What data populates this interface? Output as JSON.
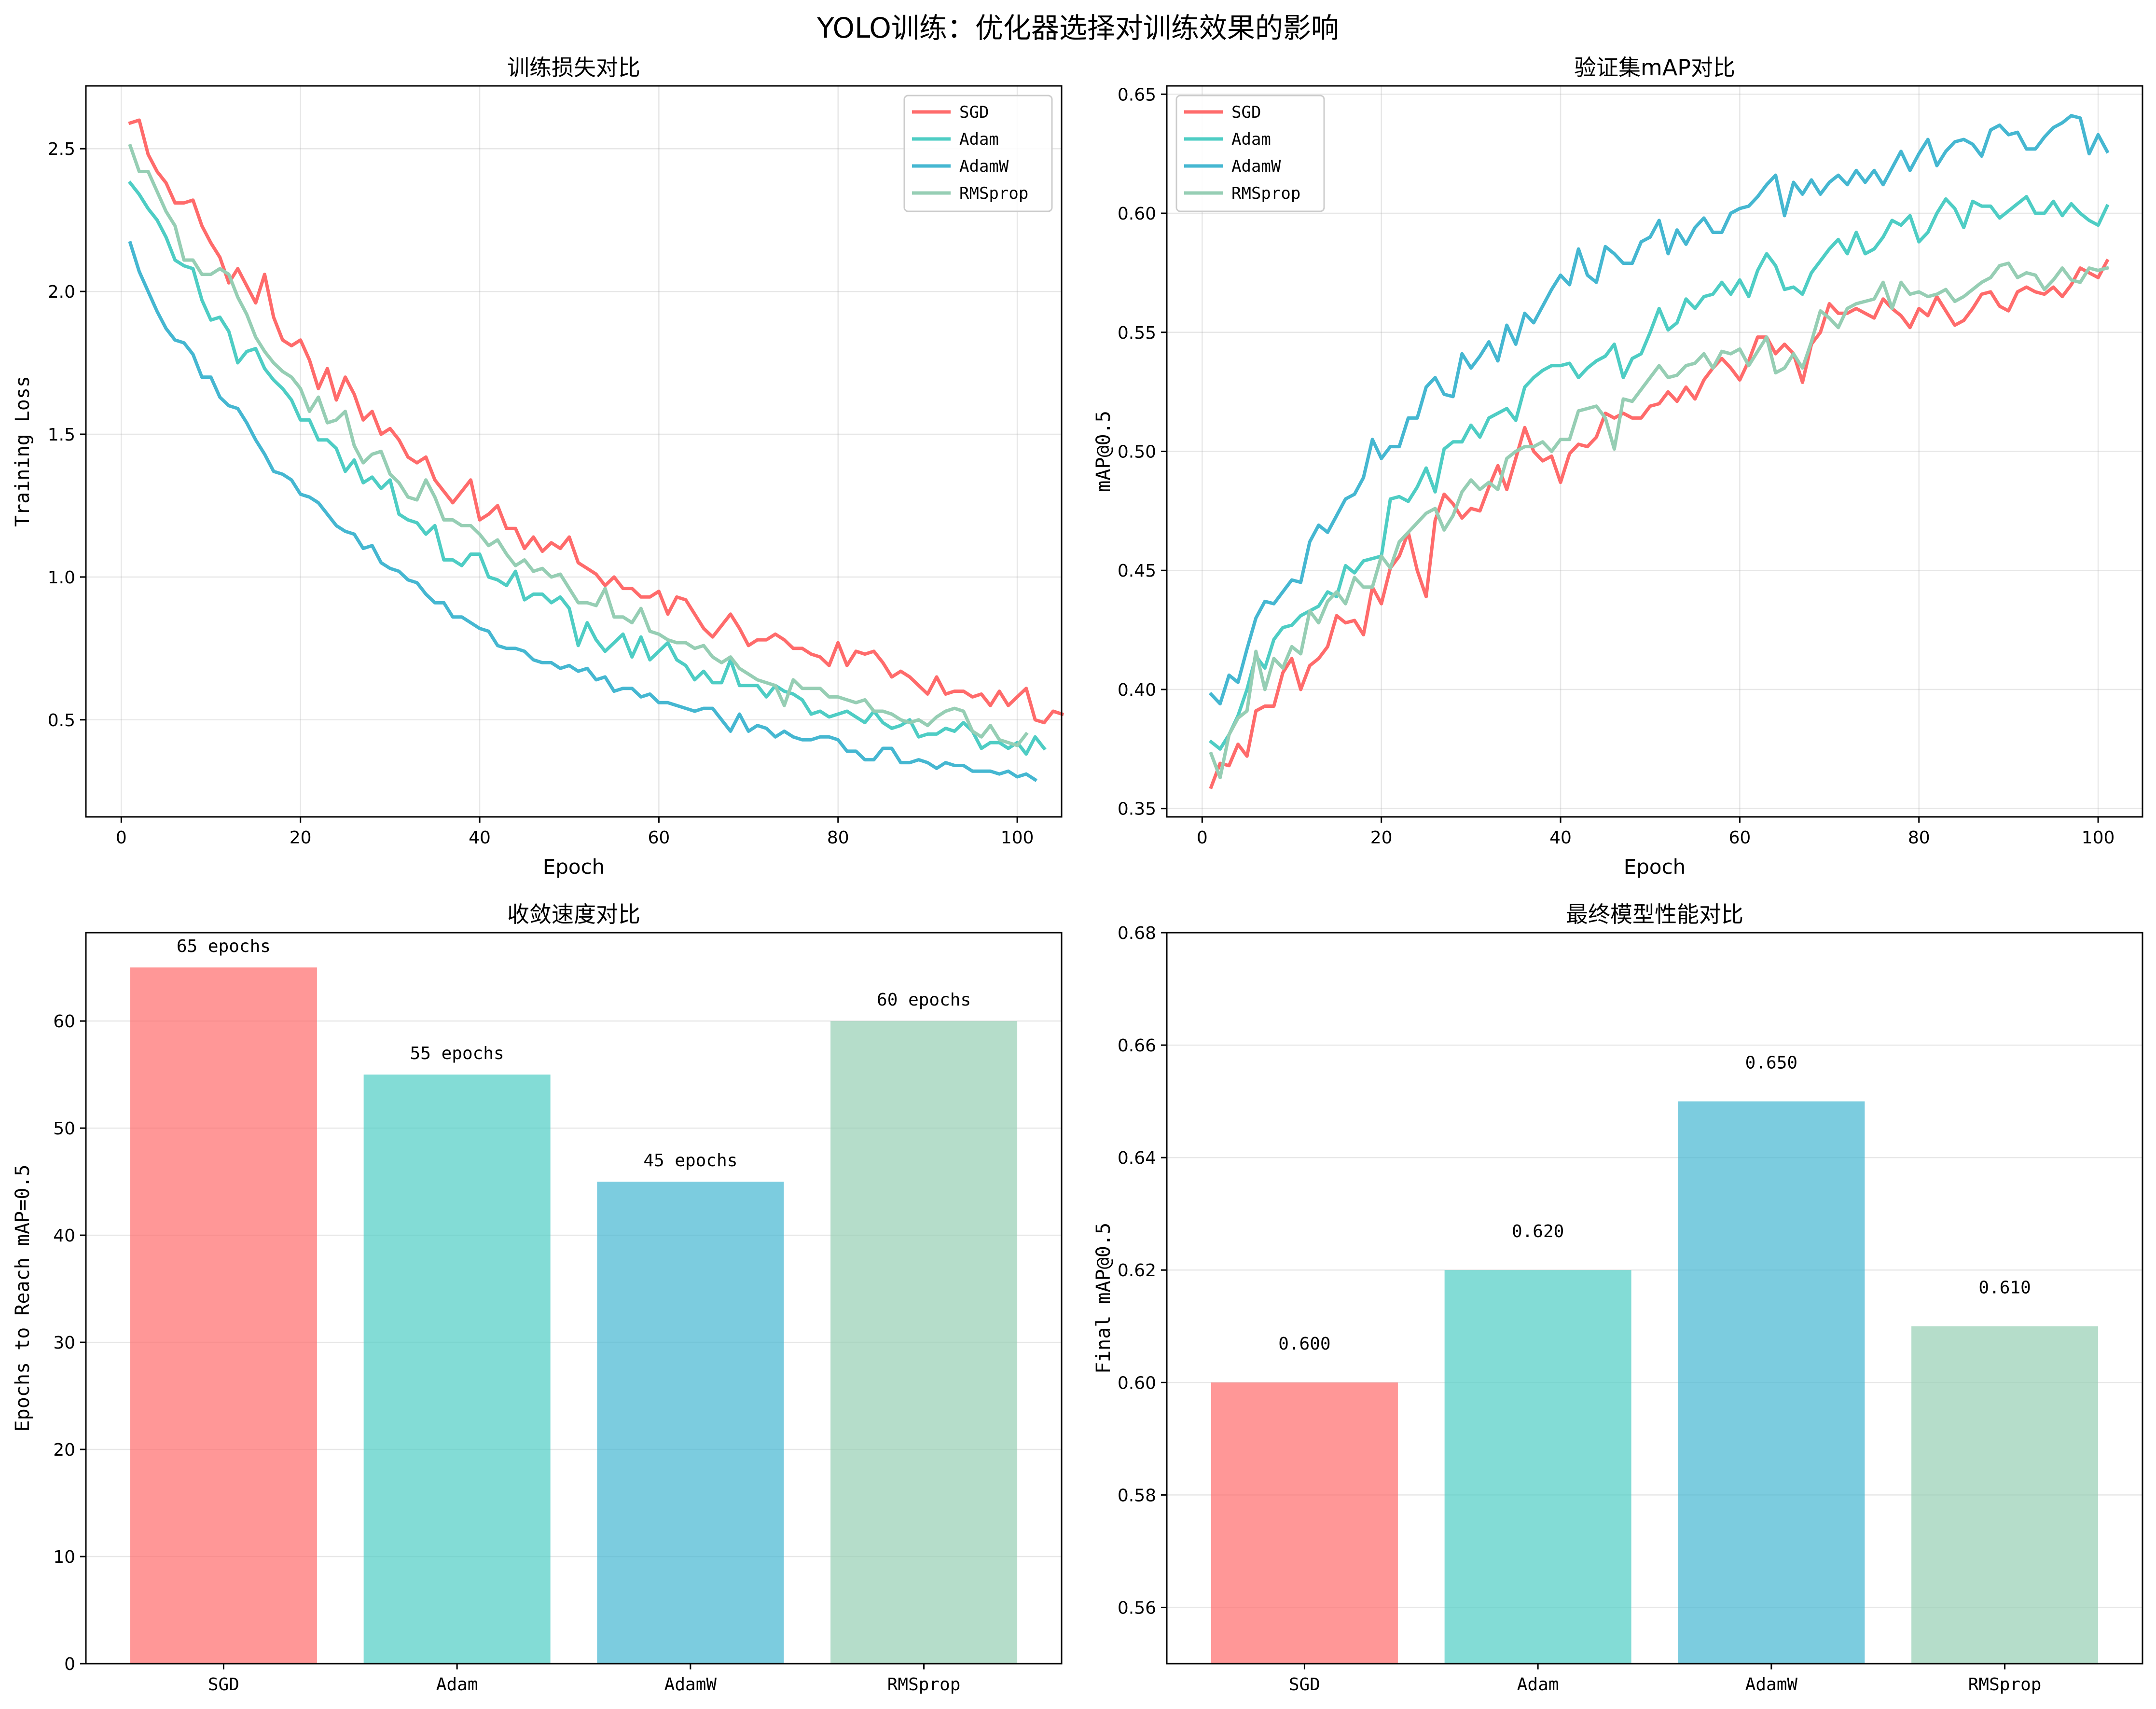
{
  "figure_title": "YOLO训练：优化器选择对训练效果的影响",
  "colors": {
    "SGD": "#ff6b6b",
    "Adam": "#4ecdc4",
    "AdamW": "#45b7d1",
    "RMSprop": "#96ceb4"
  },
  "chart_data": [
    {
      "type": "line",
      "title": "训练损失对比",
      "xlabel": "Epoch",
      "ylabel": "Training Loss",
      "xlim": [
        -3.95,
        104.95
      ],
      "ylim": [
        0.16,
        2.72
      ],
      "xticks": [
        0,
        20,
        40,
        60,
        80,
        100
      ],
      "xtick_labels": [
        "0",
        "20",
        "40",
        "60",
        "80",
        "100"
      ],
      "yticks": [
        0.5,
        1.0,
        1.5,
        2.0,
        2.5
      ],
      "ytick_labels": [
        "0.5",
        "1.0",
        "1.5",
        "2.0",
        "2.5"
      ],
      "grid": true,
      "legend_position": "top-right",
      "x_start": 1,
      "series": [
        {
          "name": "SGD",
          "values": [
            2.59,
            2.6,
            2.48,
            2.42,
            2.38,
            2.31,
            2.31,
            2.32,
            2.23,
            2.17,
            2.12,
            2.03,
            2.08,
            2.02,
            1.96,
            2.06,
            1.91,
            1.83,
            1.81,
            1.83,
            1.76,
            1.66,
            1.73,
            1.62,
            1.7,
            1.64,
            1.55,
            1.58,
            1.5,
            1.52,
            1.48,
            1.42,
            1.4,
            1.42,
            1.34,
            1.3,
            1.26,
            1.3,
            1.34,
            1.2,
            1.22,
            1.25,
            1.17,
            1.17,
            1.1,
            1.14,
            1.09,
            1.12,
            1.1,
            1.14,
            1.05,
            1.03,
            1.01,
            0.97,
            1.0,
            0.96,
            0.96,
            0.93,
            0.93,
            0.95,
            0.87,
            0.93,
            0.92,
            0.87,
            0.82,
            0.79,
            0.83,
            0.87,
            0.82,
            0.76,
            0.78,
            0.78,
            0.8,
            0.78,
            0.75,
            0.75,
            0.73,
            0.72,
            0.69,
            0.77,
            0.69,
            0.74,
            0.73,
            0.74,
            0.7,
            0.65,
            0.67,
            0.65,
            0.62,
            0.59,
            0.65,
            0.59,
            0.6,
            0.6,
            0.58,
            0.59,
            0.55,
            0.6,
            0.55,
            0.58,
            0.61,
            0.5,
            0.49,
            0.53,
            0.52
          ]
        },
        {
          "name": "Adam",
          "values": [
            2.38,
            2.34,
            2.29,
            2.25,
            2.19,
            2.11,
            2.09,
            2.08,
            1.97,
            1.9,
            1.91,
            1.86,
            1.75,
            1.79,
            1.8,
            1.73,
            1.69,
            1.66,
            1.62,
            1.55,
            1.55,
            1.48,
            1.48,
            1.45,
            1.37,
            1.41,
            1.33,
            1.35,
            1.31,
            1.34,
            1.22,
            1.2,
            1.19,
            1.15,
            1.18,
            1.06,
            1.06,
            1.04,
            1.08,
            1.08,
            1.0,
            0.99,
            0.97,
            1.02,
            0.92,
            0.94,
            0.94,
            0.91,
            0.93,
            0.89,
            0.76,
            0.84,
            0.78,
            0.74,
            0.77,
            0.8,
            0.72,
            0.79,
            0.71,
            0.74,
            0.77,
            0.71,
            0.69,
            0.64,
            0.67,
            0.63,
            0.63,
            0.71,
            0.62,
            0.62,
            0.62,
            0.58,
            0.62,
            0.6,
            0.59,
            0.57,
            0.52,
            0.53,
            0.51,
            0.52,
            0.53,
            0.51,
            0.49,
            0.53,
            0.49,
            0.47,
            0.48,
            0.5,
            0.44,
            0.45,
            0.45,
            0.47,
            0.46,
            0.49,
            0.46,
            0.4,
            0.42,
            0.42,
            0.4,
            0.42,
            0.38,
            0.44,
            0.4
          ]
        },
        {
          "name": "AdamW",
          "values": [
            2.17,
            2.07,
            2.0,
            1.93,
            1.87,
            1.83,
            1.82,
            1.78,
            1.7,
            1.7,
            1.63,
            1.6,
            1.59,
            1.54,
            1.48,
            1.43,
            1.37,
            1.36,
            1.34,
            1.29,
            1.28,
            1.26,
            1.22,
            1.18,
            1.16,
            1.15,
            1.1,
            1.11,
            1.05,
            1.03,
            1.02,
            0.99,
            0.98,
            0.94,
            0.91,
            0.91,
            0.86,
            0.86,
            0.84,
            0.82,
            0.81,
            0.76,
            0.75,
            0.75,
            0.74,
            0.71,
            0.7,
            0.7,
            0.68,
            0.69,
            0.67,
            0.68,
            0.64,
            0.65,
            0.6,
            0.61,
            0.61,
            0.58,
            0.59,
            0.56,
            0.56,
            0.55,
            0.54,
            0.53,
            0.54,
            0.54,
            0.5,
            0.46,
            0.52,
            0.46,
            0.48,
            0.47,
            0.44,
            0.46,
            0.44,
            0.43,
            0.43,
            0.44,
            0.44,
            0.43,
            0.39,
            0.39,
            0.36,
            0.36,
            0.4,
            0.4,
            0.35,
            0.35,
            0.36,
            0.35,
            0.33,
            0.35,
            0.34,
            0.34,
            0.32,
            0.32,
            0.32,
            0.31,
            0.32,
            0.3,
            0.31,
            0.29
          ]
        },
        {
          "name": "RMSprop",
          "values": [
            2.51,
            2.42,
            2.42,
            2.35,
            2.28,
            2.23,
            2.11,
            2.11,
            2.06,
            2.06,
            2.08,
            2.06,
            1.98,
            1.92,
            1.84,
            1.79,
            1.75,
            1.72,
            1.7,
            1.66,
            1.58,
            1.63,
            1.54,
            1.55,
            1.58,
            1.46,
            1.4,
            1.43,
            1.44,
            1.36,
            1.33,
            1.28,
            1.27,
            1.34,
            1.28,
            1.2,
            1.2,
            1.18,
            1.18,
            1.15,
            1.11,
            1.13,
            1.08,
            1.04,
            1.06,
            1.02,
            1.03,
            1.0,
            1.01,
            0.96,
            0.91,
            0.91,
            0.9,
            0.96,
            0.86,
            0.86,
            0.84,
            0.89,
            0.81,
            0.8,
            0.78,
            0.77,
            0.77,
            0.75,
            0.76,
            0.72,
            0.7,
            0.72,
            0.68,
            0.66,
            0.64,
            0.63,
            0.62,
            0.55,
            0.64,
            0.61,
            0.61,
            0.61,
            0.58,
            0.58,
            0.57,
            0.56,
            0.57,
            0.53,
            0.53,
            0.52,
            0.5,
            0.49,
            0.5,
            0.48,
            0.51,
            0.53,
            0.54,
            0.53,
            0.46,
            0.44,
            0.48,
            0.43,
            0.42,
            0.41,
            0.45
          ]
        }
      ]
    },
    {
      "type": "line",
      "title": "验证集mAP对比",
      "xlabel": "Epoch",
      "ylabel": "mAP@0.5",
      "xlim": [
        -3.95,
        104.95
      ],
      "ylim": [
        0.3465,
        0.6535
      ],
      "xticks": [
        0,
        20,
        40,
        60,
        80,
        100
      ],
      "xtick_labels": [
        "0",
        "20",
        "40",
        "60",
        "80",
        "100"
      ],
      "yticks": [
        0.35,
        0.4,
        0.45,
        0.5,
        0.55,
        0.6,
        0.65
      ],
      "ytick_labels": [
        "0.35",
        "0.40",
        "0.45",
        "0.50",
        "0.55",
        "0.60",
        "0.65"
      ],
      "grid": true,
      "legend_position": "top-left",
      "x_start": 1,
      "series": [
        {
          "name": "SGD",
          "values": [
            0.359,
            0.369,
            0.368,
            0.377,
            0.372,
            0.391,
            0.393,
            0.393,
            0.407,
            0.413,
            0.4,
            0.41,
            0.413,
            0.418,
            0.431,
            0.428,
            0.429,
            0.423,
            0.443,
            0.436,
            0.451,
            0.456,
            0.466,
            0.45,
            0.439,
            0.471,
            0.482,
            0.478,
            0.472,
            0.476,
            0.475,
            0.485,
            0.494,
            0.484,
            0.497,
            0.51,
            0.5,
            0.496,
            0.498,
            0.487,
            0.499,
            0.503,
            0.502,
            0.506,
            0.516,
            0.514,
            0.516,
            0.514,
            0.514,
            0.519,
            0.52,
            0.525,
            0.521,
            0.527,
            0.522,
            0.53,
            0.535,
            0.539,
            0.535,
            0.53,
            0.538,
            0.548,
            0.548,
            0.541,
            0.545,
            0.541,
            0.529,
            0.545,
            0.55,
            0.562,
            0.558,
            0.558,
            0.56,
            0.558,
            0.556,
            0.564,
            0.56,
            0.557,
            0.552,
            0.56,
            0.557,
            0.565,
            0.559,
            0.553,
            0.555,
            0.56,
            0.566,
            0.567,
            0.561,
            0.559,
            0.567,
            0.569,
            0.567,
            0.566,
            0.569,
            0.565,
            0.57,
            0.577,
            0.575,
            0.573,
            0.58
          ]
        },
        {
          "name": "Adam",
          "values": [
            0.378,
            0.375,
            0.381,
            0.389,
            0.4,
            0.414,
            0.409,
            0.421,
            0.426,
            0.427,
            0.431,
            0.433,
            0.435,
            0.441,
            0.439,
            0.452,
            0.449,
            0.454,
            0.455,
            0.456,
            0.48,
            0.481,
            0.479,
            0.485,
            0.493,
            0.483,
            0.501,
            0.504,
            0.504,
            0.511,
            0.506,
            0.514,
            0.516,
            0.518,
            0.513,
            0.527,
            0.531,
            0.534,
            0.536,
            0.536,
            0.537,
            0.531,
            0.535,
            0.538,
            0.54,
            0.545,
            0.531,
            0.539,
            0.541,
            0.55,
            0.56,
            0.551,
            0.554,
            0.564,
            0.56,
            0.565,
            0.566,
            0.571,
            0.566,
            0.572,
            0.565,
            0.576,
            0.583,
            0.578,
            0.568,
            0.569,
            0.566,
            0.575,
            0.58,
            0.585,
            0.589,
            0.583,
            0.592,
            0.583,
            0.585,
            0.59,
            0.597,
            0.595,
            0.599,
            0.588,
            0.592,
            0.6,
            0.606,
            0.602,
            0.594,
            0.605,
            0.603,
            0.603,
            0.598,
            0.601,
            0.604,
            0.607,
            0.6,
            0.6,
            0.605,
            0.599,
            0.604,
            0.6,
            0.597,
            0.595,
            0.603
          ]
        },
        {
          "name": "AdamW",
          "values": [
            0.398,
            0.394,
            0.406,
            0.403,
            0.417,
            0.43,
            0.437,
            0.436,
            0.441,
            0.446,
            0.445,
            0.462,
            0.469,
            0.466,
            0.473,
            0.48,
            0.482,
            0.489,
            0.505,
            0.497,
            0.502,
            0.502,
            0.514,
            0.514,
            0.527,
            0.531,
            0.524,
            0.523,
            0.541,
            0.535,
            0.54,
            0.546,
            0.538,
            0.553,
            0.545,
            0.558,
            0.554,
            0.561,
            0.568,
            0.574,
            0.57,
            0.585,
            0.574,
            0.571,
            0.586,
            0.583,
            0.579,
            0.579,
            0.588,
            0.59,
            0.597,
            0.583,
            0.593,
            0.587,
            0.594,
            0.598,
            0.592,
            0.592,
            0.6,
            0.602,
            0.603,
            0.607,
            0.612,
            0.616,
            0.599,
            0.613,
            0.608,
            0.614,
            0.608,
            0.613,
            0.616,
            0.612,
            0.618,
            0.613,
            0.618,
            0.612,
            0.619,
            0.626,
            0.618,
            0.625,
            0.631,
            0.62,
            0.626,
            0.63,
            0.631,
            0.629,
            0.624,
            0.635,
            0.637,
            0.633,
            0.634,
            0.627,
            0.627,
            0.632,
            0.636,
            0.638,
            0.641,
            0.64,
            0.625,
            0.633,
            0.626
          ]
        },
        {
          "name": "RMSprop",
          "values": [
            0.373,
            0.363,
            0.381,
            0.388,
            0.391,
            0.416,
            0.4,
            0.413,
            0.409,
            0.418,
            0.415,
            0.433,
            0.428,
            0.437,
            0.441,
            0.436,
            0.447,
            0.443,
            0.443,
            0.456,
            0.451,
            0.462,
            0.466,
            0.47,
            0.474,
            0.476,
            0.467,
            0.473,
            0.483,
            0.488,
            0.484,
            0.487,
            0.484,
            0.497,
            0.5,
            0.502,
            0.502,
            0.504,
            0.5,
            0.505,
            0.505,
            0.517,
            0.518,
            0.519,
            0.514,
            0.501,
            0.522,
            0.521,
            0.526,
            0.531,
            0.536,
            0.531,
            0.532,
            0.536,
            0.537,
            0.541,
            0.535,
            0.542,
            0.541,
            0.543,
            0.536,
            0.542,
            0.548,
            0.533,
            0.535,
            0.541,
            0.535,
            0.546,
            0.559,
            0.556,
            0.552,
            0.56,
            0.562,
            0.563,
            0.564,
            0.571,
            0.56,
            0.571,
            0.566,
            0.567,
            0.565,
            0.566,
            0.568,
            0.563,
            0.565,
            0.568,
            0.571,
            0.573,
            0.578,
            0.579,
            0.573,
            0.575,
            0.574,
            0.568,
            0.572,
            0.577,
            0.572,
            0.571,
            0.577,
            0.576,
            0.577
          ]
        }
      ]
    },
    {
      "type": "bar",
      "title": "收敛速度对比",
      "xlabel": "",
      "ylabel": "Epochs to Reach mAP=0.5",
      "categories": [
        "SGD",
        "Adam",
        "AdamW",
        "RMSprop"
      ],
      "values": [
        65,
        55,
        45,
        60
      ],
      "value_labels": [
        "65 epochs",
        "55 epochs",
        "45 epochs",
        "60 epochs"
      ],
      "label_offset": 1,
      "ylim": [
        0,
        68.25
      ],
      "yticks": [
        0,
        10,
        20,
        30,
        40,
        50,
        60
      ],
      "ytick_labels": [
        "0",
        "10",
        "20",
        "30",
        "40",
        "50",
        "60"
      ],
      "grid": true
    },
    {
      "type": "bar",
      "title": "最终模型性能对比",
      "xlabel": "",
      "ylabel": "Final mAP@0.5",
      "categories": [
        "SGD",
        "Adam",
        "AdamW",
        "RMSprop"
      ],
      "values": [
        0.6,
        0.62,
        0.65,
        0.61
      ],
      "value_labels": [
        "0.600",
        "0.620",
        "0.650",
        "0.610"
      ],
      "label_offset": 0.005,
      "ylim": [
        0.55,
        0.68
      ],
      "yticks": [
        0.56,
        0.58,
        0.6,
        0.62,
        0.64,
        0.66,
        0.68
      ],
      "ytick_labels": [
        "0.56",
        "0.58",
        "0.60",
        "0.62",
        "0.64",
        "0.66",
        "0.68"
      ],
      "grid": true
    }
  ]
}
